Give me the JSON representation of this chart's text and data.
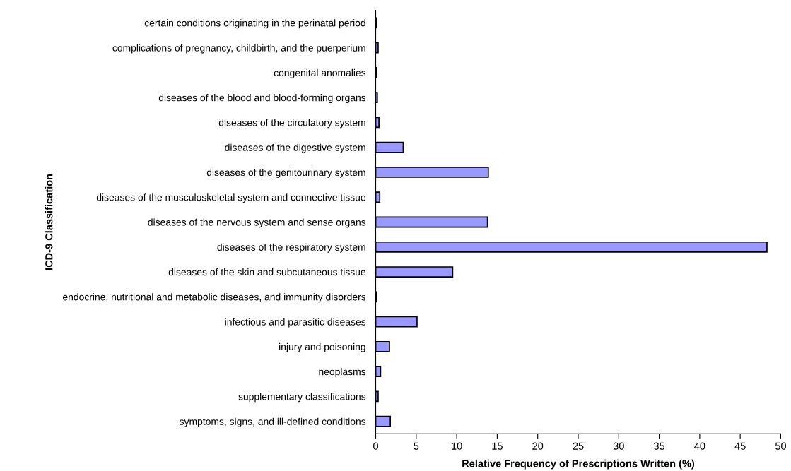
{
  "chart_data": {
    "type": "bar",
    "orientation": "horizontal",
    "xlabel": "Relative Frequency of Prescriptions Written (%)",
    "ylabel": "ICD-9 Classification",
    "categories": [
      "certain conditions originating in the perinatal period",
      "complications of pregnancy, childbirth, and the puerperium",
      "congenital anomalies",
      "diseases of the blood and blood-forming organs",
      "diseases of the circulatory system",
      "diseases of the digestive system",
      "diseases of the genitourinary system",
      "diseases of the musculoskeletal system and connective tissue",
      "diseases of the nervous system and sense organs",
      "diseases of the respiratory system",
      "diseases of the skin and subcutaneous tissue",
      "endocrine, nutritional and metabolic diseases, and immunity disorders",
      "infectious and parasitic diseases",
      "injury and poisoning",
      "neoplasms",
      "supplementary classifications",
      "symptoms, signs, and ill-defined conditions"
    ],
    "values": [
      0.1,
      0.3,
      0.1,
      0.2,
      0.4,
      3.4,
      13.9,
      0.5,
      13.8,
      48.3,
      9.5,
      0.1,
      5.1,
      1.7,
      0.6,
      0.3,
      1.8
    ],
    "color": "#9999ff",
    "xlim": [
      0,
      50
    ],
    "xticks": [
      0,
      5,
      10,
      15,
      20,
      25,
      30,
      35,
      40,
      45,
      50
    ],
    "grid": false,
    "legend": false
  }
}
